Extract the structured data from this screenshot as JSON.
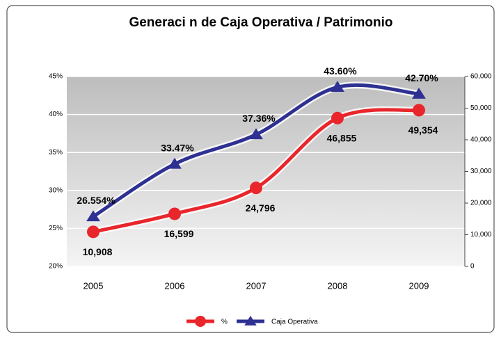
{
  "chart_data": {
    "type": "line",
    "title": "Generaci n de Caja Operativa / Patrimonio",
    "categories": [
      "2005",
      "2006",
      "2007",
      "2008",
      "2009"
    ],
    "series": [
      {
        "name": "%",
        "color": "#e8262b",
        "axis": "y2",
        "marker": "circle",
        "values": [
          10908,
          16599,
          24796,
          46855,
          49354
        ],
        "value_labels": [
          "10,908",
          "16,599",
          "24,796",
          "46,855",
          "49,354"
        ]
      },
      {
        "name": "Caja Operativa",
        "color": "#2e3192",
        "axis": "y",
        "marker": "triangle",
        "values": [
          26.554,
          33.47,
          37.36,
          43.6,
          42.7
        ],
        "value_labels": [
          "26.554%",
          "33.47%",
          "37.36%",
          "43.60%",
          "42.70%"
        ]
      }
    ],
    "ylim": [
      20,
      45
    ],
    "yticks": [
      {
        "value": 20,
        "label": "20%"
      },
      {
        "value": 25,
        "label": "25%"
      },
      {
        "value": 30,
        "label": "30%"
      },
      {
        "value": 35,
        "label": "35%"
      },
      {
        "value": 40,
        "label": "40%"
      },
      {
        "value": 45,
        "label": "45%"
      }
    ],
    "y2lim": [
      0,
      60000
    ],
    "y2ticks": [
      0,
      {
        "value": 10000,
        "label": "10,000"
      },
      {
        "value": 20000,
        "label": "20,000"
      },
      {
        "value": 30000,
        "label": "30,000"
      },
      {
        "value": 40000,
        "label": "40,000"
      },
      {
        "value": 50000,
        "label": "50,000"
      },
      {
        "value": 60000,
        "label": "60,000"
      }
    ],
    "grid": true,
    "legend": "bottom"
  }
}
